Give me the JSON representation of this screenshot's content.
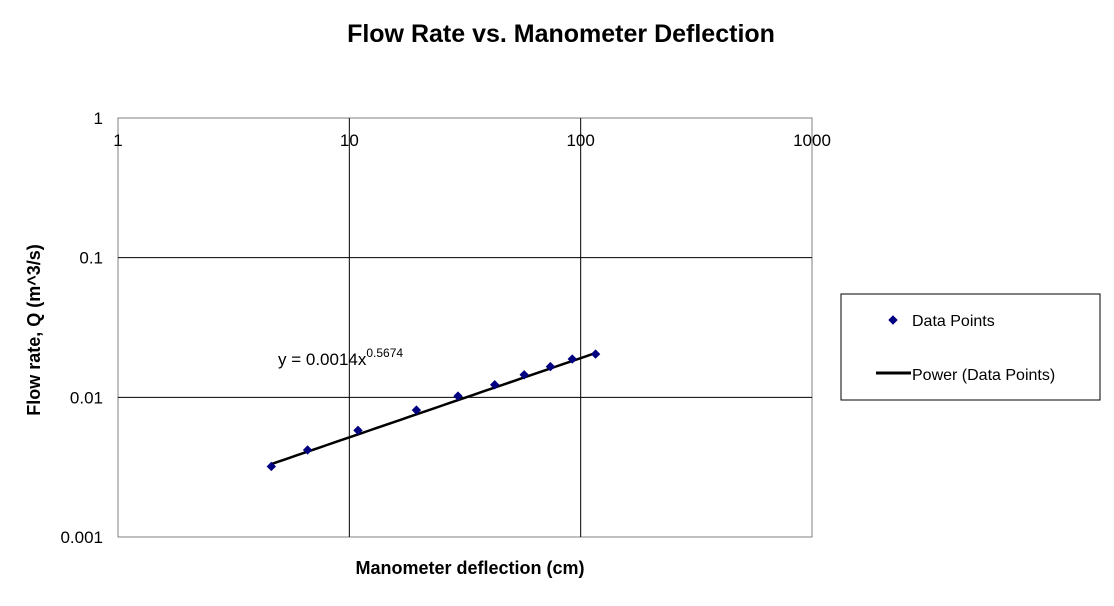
{
  "chart_data": {
    "type": "scatter",
    "title": "Flow Rate vs. Manometer Deflection",
    "xlabel": "Manometer deflection (cm)",
    "ylabel": "Flow rate, Q (m^3/s)",
    "x_scale": "log",
    "y_scale": "log",
    "xlim": [
      1,
      1000
    ],
    "ylim": [
      0.001,
      1
    ],
    "x_ticks": [
      "1",
      "10",
      "100",
      "1000"
    ],
    "y_ticks": [
      "1",
      "0.1",
      "0.01",
      "0.001"
    ],
    "grid": true,
    "legend_position": "right",
    "series": [
      {
        "name": "Data Points",
        "marker": "diamond",
        "color": "#000080",
        "x": [
          4.6,
          6.6,
          10.9,
          19.5,
          29.5,
          42.5,
          57,
          74,
          92,
          116
        ],
        "y": [
          0.0032,
          0.0042,
          0.0058,
          0.0081,
          0.0102,
          0.0123,
          0.0145,
          0.0166,
          0.0188,
          0.0204
        ]
      },
      {
        "name": "Power (Data Points)",
        "type": "line",
        "color": "#000000",
        "fit": {
          "a": 0.0014,
          "b": 0.5674
        },
        "x_range": [
          4.6,
          116
        ]
      }
    ],
    "trendline_equation": {
      "prefix": "y = 0.0014x",
      "exponent": "0.5674"
    }
  }
}
